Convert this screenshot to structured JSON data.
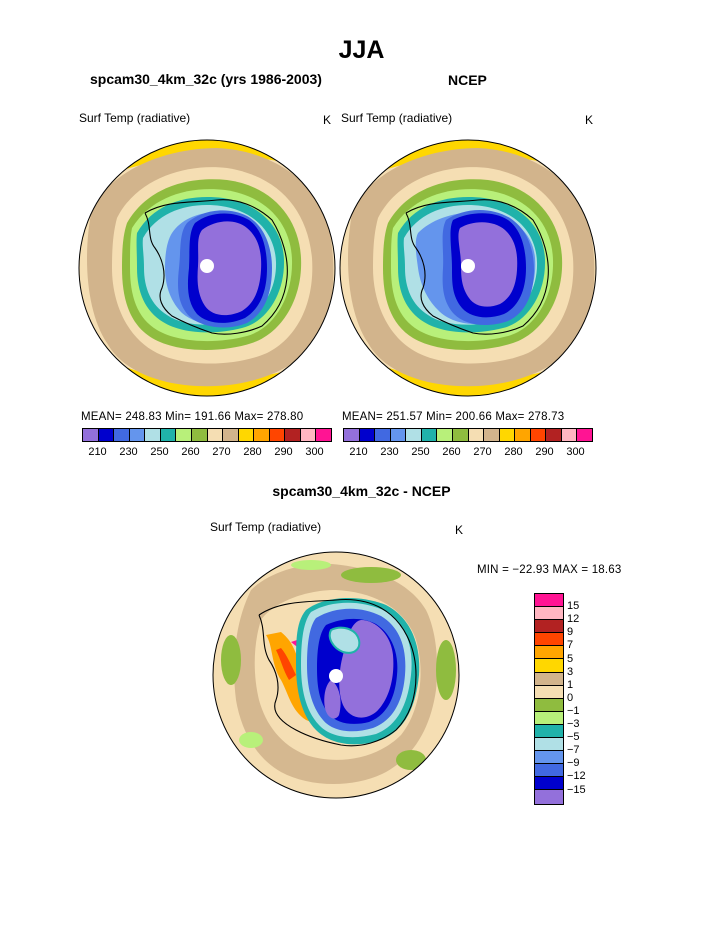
{
  "page_title": "JJA",
  "panels": [
    {
      "title": "spcam30_4km_32c (yrs 1986-2003)",
      "variable": "Surf Temp (radiative)",
      "units": "K",
      "stats": "MEAN= 248.83   Min= 191.66   Max= 278.80"
    },
    {
      "title": "NCEP",
      "variable": "Surf Temp (radiative)",
      "units": "K",
      "stats": "MEAN= 251.57   Min= 200.66   Max= 278.73"
    },
    {
      "title": "spcam30_4km_32c - NCEP",
      "variable": "Surf Temp (radiative)",
      "units": "K",
      "stats": "MIN = −22.93  MAX =   18.63"
    }
  ],
  "abs_colorbar": {
    "colors": [
      "#9370db",
      "#0000cd",
      "#4169e1",
      "#6495ed",
      "#b0e0e6",
      "#20b2aa",
      "#b8f07a",
      "#8fbc3f",
      "#f5deb3",
      "#d2b48c",
      "#ffd700",
      "#ffa500",
      "#ff4500",
      "#b22222",
      "#ffb6c1",
      "#ff1493"
    ],
    "tick_labels": [
      "210",
      "230",
      "250",
      "260",
      "270",
      "280",
      "290",
      "300"
    ]
  },
  "diff_colorbar": {
    "colors": [
      "#ff1493",
      "#ffb6c1",
      "#b22222",
      "#ff4500",
      "#ffa500",
      "#ffd700",
      "#d2b48c",
      "#f5deb3",
      "#8fbc3f",
      "#b8f07a",
      "#20b2aa",
      "#b0e0e6",
      "#6495ed",
      "#4169e1",
      "#0000cd",
      "#9370db"
    ],
    "tick_labels": [
      "15",
      "12",
      "9",
      "7",
      "5",
      "3",
      "1",
      "0",
      "−1",
      "−3",
      "−5",
      "−7",
      "−9",
      "−12",
      "−15"
    ]
  }
}
